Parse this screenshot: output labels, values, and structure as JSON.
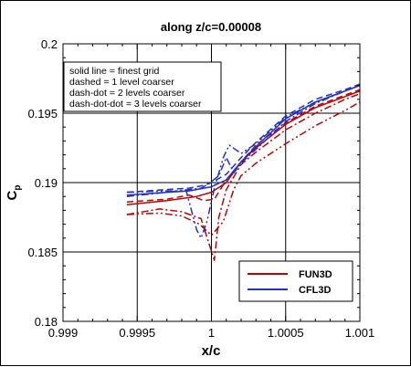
{
  "chart_data": {
    "type": "line",
    "title": "along z/c=0.00008",
    "xlabel": "x/c",
    "ylabel_main": "C",
    "ylabel_sub": "p",
    "xlim": [
      0.999,
      1.001
    ],
    "ylim": [
      0.18,
      0.2
    ],
    "xticks": [
      0.999,
      0.9995,
      1.0,
      1.0005,
      1.001
    ],
    "xtick_labels": [
      "0.999",
      "0.9995",
      "1",
      "1.0005",
      "1.001"
    ],
    "yticks": [
      0.18,
      0.185,
      0.19,
      0.195,
      0.2
    ],
    "ytick_labels": [
      "0.18",
      "0.185",
      "0.19",
      "0.195",
      "0.2"
    ],
    "grid": true,
    "annotation_lines": [
      "solid line = finest grid",
      "dashed = 1 level coarser",
      "dash-dot = 2 levels coarser",
      "dash-dot-dot = 3 levels coarser"
    ],
    "legend": [
      {
        "name": "FUN3D",
        "color": "#c00000"
      },
      {
        "name": "CFL3D",
        "color": "#2030c8"
      }
    ],
    "legend_position": "bottom-right",
    "series": [
      {
        "code": "FUN3D",
        "grid_level": "finest",
        "color": "#c00000",
        "style": "solid",
        "points": [
          [
            0.99943,
            0.1884
          ],
          [
            0.9997,
            0.1887
          ],
          [
            0.9999,
            0.189
          ],
          [
            1.0,
            0.1893
          ],
          [
            1.0001,
            0.19
          ],
          [
            1.0002,
            0.1915
          ],
          [
            1.0003,
            0.1925
          ],
          [
            1.0005,
            0.1942
          ],
          [
            1.0007,
            0.1954
          ],
          [
            1.0009,
            0.1962
          ],
          [
            1.001,
            0.1966
          ]
        ]
      },
      {
        "code": "FUN3D",
        "grid_level": "1 level coarser",
        "color": "#c00000",
        "style": "dashed",
        "points": [
          [
            0.99943,
            0.1886
          ],
          [
            0.9997,
            0.1888
          ],
          [
            0.99985,
            0.1891
          ],
          [
            0.99995,
            0.1887
          ],
          [
            1.00002,
            0.1888
          ],
          [
            1.0001,
            0.1902
          ],
          [
            1.0002,
            0.1915
          ],
          [
            1.0003,
            0.1927
          ],
          [
            1.0005,
            0.1943
          ],
          [
            1.0007,
            0.1955
          ],
          [
            1.0009,
            0.1963
          ],
          [
            1.001,
            0.1967
          ]
        ]
      },
      {
        "code": "FUN3D",
        "grid_level": "2 levels coarser",
        "color": "#c00000",
        "style": "dashdot",
        "points": [
          [
            0.99943,
            0.1877
          ],
          [
            0.99965,
            0.1881
          ],
          [
            0.9998,
            0.1879
          ],
          [
            0.99993,
            0.1874
          ],
          [
            1.00002,
            0.1844
          ],
          [
            1.00005,
            0.1875
          ],
          [
            1.0001,
            0.1895
          ],
          [
            1.0002,
            0.1913
          ],
          [
            1.0003,
            0.1922
          ],
          [
            1.0005,
            0.1938
          ],
          [
            1.0007,
            0.195
          ],
          [
            1.0009,
            0.196
          ],
          [
            1.001,
            0.1964
          ]
        ]
      },
      {
        "code": "FUN3D",
        "grid_level": "3 levels coarser",
        "color": "#c00000",
        "style": "dashdotdot",
        "points": [
          [
            0.99943,
            0.1877
          ],
          [
            0.99965,
            0.1878
          ],
          [
            0.9998,
            0.1876
          ],
          [
            0.99992,
            0.187
          ],
          [
            1.0,
            0.1862
          ],
          [
            1.00008,
            0.1872
          ],
          [
            1.00015,
            0.1895
          ],
          [
            1.0002,
            0.1905
          ],
          [
            1.0003,
            0.1914
          ],
          [
            1.0005,
            0.1928
          ],
          [
            1.0007,
            0.1941
          ],
          [
            1.0009,
            0.1952
          ],
          [
            1.001,
            0.1958
          ]
        ]
      },
      {
        "code": "CFL3D",
        "grid_level": "finest",
        "color": "#2030c8",
        "style": "solid",
        "points": [
          [
            0.99943,
            0.1891
          ],
          [
            0.9997,
            0.1893
          ],
          [
            0.99985,
            0.1894
          ],
          [
            0.99995,
            0.1896
          ],
          [
            1.0,
            0.1897
          ],
          [
            1.0001,
            0.1902
          ],
          [
            1.0002,
            0.1915
          ],
          [
            1.0003,
            0.1926
          ],
          [
            1.0005,
            0.1946
          ],
          [
            1.0007,
            0.1958
          ],
          [
            1.0009,
            0.1966
          ],
          [
            1.001,
            0.197
          ]
        ]
      },
      {
        "code": "CFL3D",
        "grid_level": "1 level coarser",
        "color": "#2030c8",
        "style": "dashed",
        "points": [
          [
            0.99943,
            0.1893
          ],
          [
            0.9997,
            0.1895
          ],
          [
            0.99985,
            0.1896
          ],
          [
            0.99995,
            0.1898
          ],
          [
            1.0,
            0.19
          ],
          [
            1.0001,
            0.1906
          ],
          [
            1.0002,
            0.1918
          ],
          [
            1.0003,
            0.1929
          ],
          [
            1.0005,
            0.1948
          ],
          [
            1.0007,
            0.196
          ],
          [
            1.0009,
            0.1967
          ],
          [
            1.001,
            0.1971
          ]
        ]
      },
      {
        "code": "CFL3D",
        "grid_level": "2 levels coarser",
        "color": "#2030c8",
        "style": "dashdot",
        "points": [
          [
            0.99943,
            0.189
          ],
          [
            0.9997,
            0.1893
          ],
          [
            0.99985,
            0.1895
          ],
          [
            0.99993,
            0.1896
          ],
          [
            0.99998,
            0.1899
          ],
          [
            1.00005,
            0.1905
          ],
          [
            1.0001,
            0.1918
          ],
          [
            1.00015,
            0.1907
          ],
          [
            1.0002,
            0.1914
          ],
          [
            1.0003,
            0.1924
          ],
          [
            1.0005,
            0.1944
          ],
          [
            1.0007,
            0.1957
          ],
          [
            1.0009,
            0.1966
          ],
          [
            1.001,
            0.197
          ]
        ]
      },
      {
        "code": "CFL3D",
        "grid_level": "3 levels coarser",
        "color": "#2030c8",
        "style": "dashdotdot",
        "points": [
          [
            0.99943,
            0.1893
          ],
          [
            0.9997,
            0.1894
          ],
          [
            0.99983,
            0.1894
          ],
          [
            0.9999,
            0.1866
          ],
          [
            0.99993,
            0.186
          ],
          [
            0.99997,
            0.1872
          ],
          [
            1.00002,
            0.1896
          ],
          [
            1.00008,
            0.1918
          ],
          [
            1.00012,
            0.1927
          ],
          [
            1.0002,
            0.1921
          ],
          [
            1.0003,
            0.1928
          ],
          [
            1.0005,
            0.1947
          ],
          [
            1.0007,
            0.1958
          ],
          [
            1.0009,
            0.1966
          ],
          [
            1.001,
            0.197
          ]
        ]
      }
    ]
  }
}
